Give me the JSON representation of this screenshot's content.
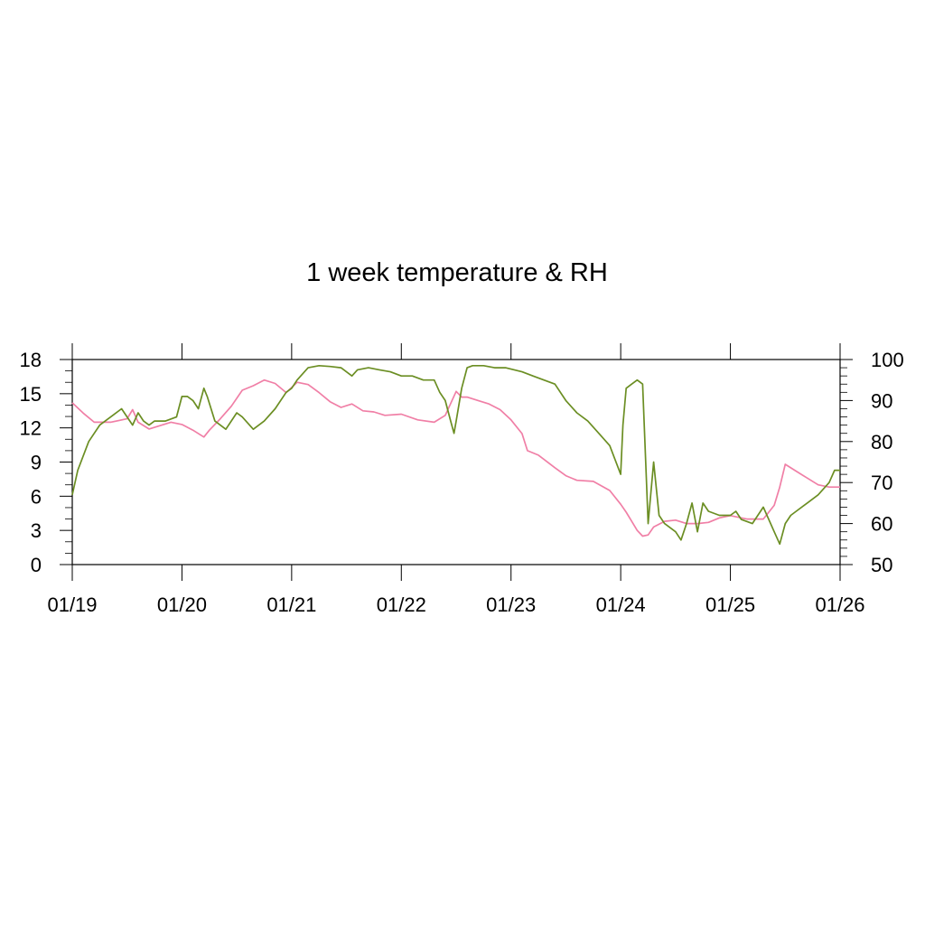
{
  "chart_data": {
    "type": "line",
    "title": "1 week temperature & RH",
    "grid": false,
    "legend": "none",
    "x_ticks": [
      "01/19",
      "01/20",
      "01/21",
      "01/22",
      "01/23",
      "01/24",
      "01/25",
      "01/26"
    ],
    "xlim": [
      0,
      7
    ],
    "y_left": {
      "ticks": [
        "0",
        "3",
        "6",
        "9",
        "12",
        "15",
        "18"
      ],
      "ylim": [
        0,
        18
      ]
    },
    "y_right": {
      "ticks": [
        "50",
        "60",
        "70",
        "80",
        "90",
        "100"
      ],
      "ylim": [
        50,
        100
      ]
    },
    "series": [
      {
        "axis": "left",
        "color": "#f07fa6",
        "x": [
          0,
          0.1,
          0.2,
          0.35,
          0.5,
          0.55,
          0.6,
          0.7,
          0.9,
          1.0,
          1.1,
          1.2,
          1.25,
          1.35,
          1.45,
          1.55,
          1.65,
          1.75,
          1.85,
          1.95,
          2.05,
          2.15,
          2.25,
          2.35,
          2.45,
          2.55,
          2.65,
          2.75,
          2.85,
          3.0,
          3.15,
          3.3,
          3.4,
          3.5,
          3.55,
          3.6,
          3.7,
          3.8,
          3.9,
          4.0,
          4.1,
          4.15,
          4.25,
          4.4,
          4.5,
          4.6,
          4.75,
          4.9,
          5.0,
          5.05,
          5.1,
          5.15,
          5.2,
          5.25,
          5.3,
          5.4,
          5.5,
          5.6,
          5.7,
          5.8,
          5.9,
          6.0,
          6.15,
          6.3,
          6.4,
          6.45,
          6.5,
          6.6,
          6.7,
          6.8,
          6.9,
          7.0
        ],
        "y": [
          14.2,
          13.3,
          12.5,
          12.5,
          12.8,
          13.6,
          12.5,
          11.9,
          12.5,
          12.3,
          11.8,
          11.2,
          11.8,
          12.8,
          13.9,
          15.3,
          15.7,
          16.2,
          15.9,
          15.1,
          16.0,
          15.8,
          15.1,
          14.3,
          13.8,
          14.1,
          13.5,
          13.4,
          13.1,
          13.2,
          12.7,
          12.5,
          13.1,
          15.2,
          14.7,
          14.7,
          14.4,
          14.1,
          13.6,
          12.7,
          11.5,
          10.0,
          9.6,
          8.5,
          7.8,
          7.4,
          7.3,
          6.5,
          5.3,
          4.6,
          3.8,
          3.0,
          2.5,
          2.6,
          3.3,
          3.8,
          3.9,
          3.6,
          3.6,
          3.7,
          4.1,
          4.3,
          4.0,
          4.0,
          5.2,
          6.8,
          8.8,
          8.2,
          7.6,
          7.0,
          6.8,
          6.8
        ]
      },
      {
        "axis": "right",
        "color": "#6b8e23",
        "x": [
          0,
          0.05,
          0.15,
          0.25,
          0.35,
          0.45,
          0.55,
          0.6,
          0.65,
          0.7,
          0.75,
          0.85,
          0.95,
          1.0,
          1.05,
          1.1,
          1.15,
          1.2,
          1.23,
          1.3,
          1.4,
          1.5,
          1.55,
          1.65,
          1.75,
          1.85,
          1.95,
          2.0,
          2.05,
          2.15,
          2.25,
          2.35,
          2.45,
          2.55,
          2.6,
          2.7,
          2.8,
          2.9,
          3.0,
          3.1,
          3.2,
          3.3,
          3.35,
          3.4,
          3.45,
          3.48,
          3.5,
          3.55,
          3.6,
          3.65,
          3.75,
          3.85,
          3.95,
          4.1,
          4.2,
          4.3,
          4.4,
          4.5,
          4.6,
          4.7,
          4.8,
          4.9,
          5.0,
          5.02,
          5.05,
          5.1,
          5.15,
          5.2,
          5.25,
          5.3,
          5.35,
          5.4,
          5.5,
          5.55,
          5.6,
          5.65,
          5.7,
          5.75,
          5.8,
          5.9,
          6.0,
          6.05,
          6.1,
          6.2,
          6.3,
          6.4,
          6.45,
          6.5,
          6.55,
          6.6,
          6.7,
          6.8,
          6.9,
          6.95,
          7.0
        ],
        "y": [
          67.0,
          73.0,
          80.0,
          84.0,
          86.0,
          88.0,
          84.0,
          87.0,
          85.0,
          84.0,
          85.0,
          85.0,
          86.0,
          91.0,
          91.0,
          90.0,
          88.0,
          93.0,
          91.0,
          85.0,
          83.0,
          87.0,
          86.0,
          83.0,
          85.0,
          88.0,
          92.0,
          93.0,
          95.0,
          98.0,
          98.5,
          98.3,
          98.0,
          96.0,
          97.5,
          98.0,
          97.5,
          97.0,
          96.0,
          96.0,
          95.0,
          95.0,
          92.0,
          90.0,
          85.0,
          82.0,
          85.0,
          93.0,
          98.0,
          98.5,
          98.5,
          98.0,
          98.0,
          97.0,
          96.0,
          95.0,
          94.0,
          90.0,
          87.0,
          85.0,
          82.0,
          79.0,
          72.0,
          84.0,
          93.0,
          94.0,
          95.0,
          94.0,
          60.0,
          75.0,
          62.0,
          60.0,
          58.0,
          56.0,
          60.0,
          65.0,
          58.0,
          65.0,
          63.0,
          62.0,
          62.0,
          63.0,
          61.0,
          60.0,
          64.0,
          58.0,
          55.0,
          60.0,
          62.0,
          63.0,
          65.0,
          67.0,
          70.0,
          73.0,
          73.0
        ]
      }
    ]
  }
}
